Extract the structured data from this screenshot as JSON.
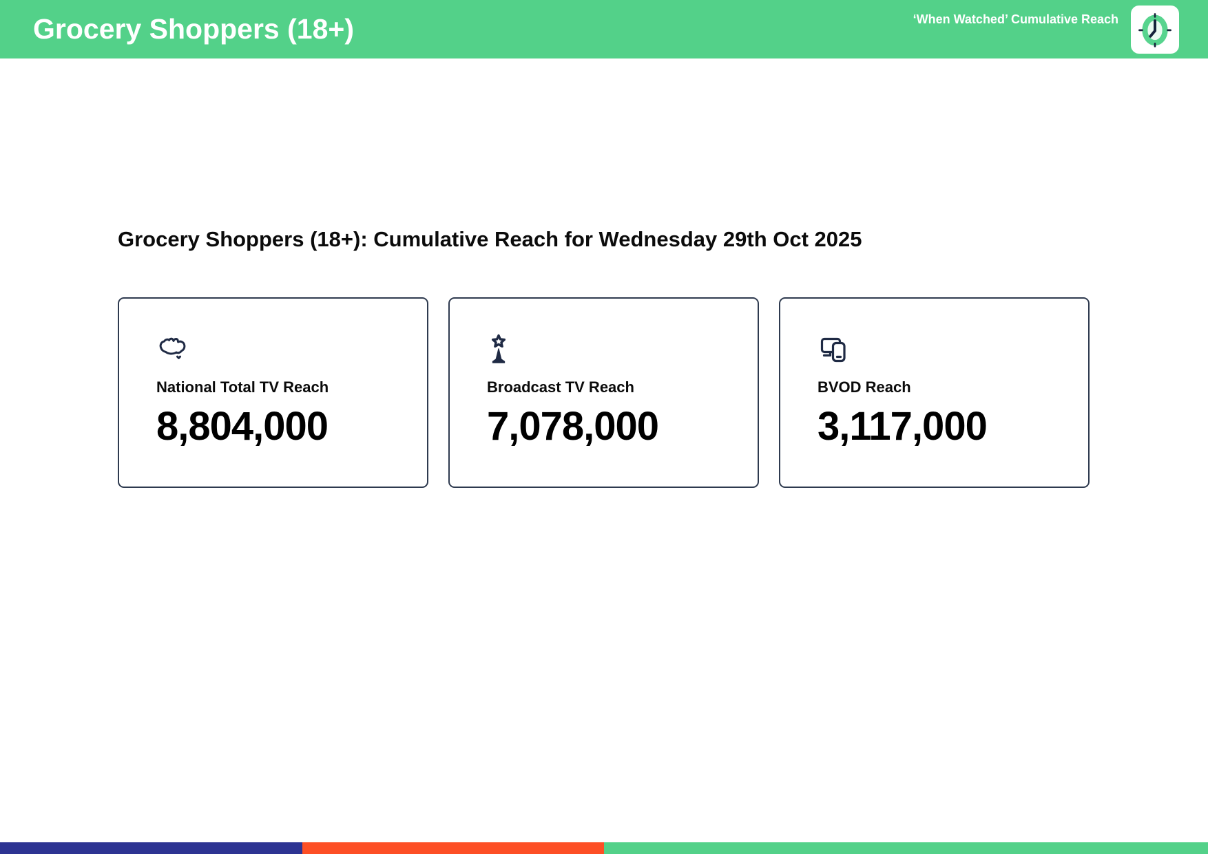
{
  "header": {
    "title": "Grocery Shoppers (18+)",
    "tagline": "‘When Watched’ Cumulative Reach"
  },
  "main": {
    "heading": "Grocery Shoppers (18+): Cumulative Reach for Wednesday 29th Oct 2025",
    "cards": [
      {
        "icon": "australia-map-icon",
        "label": "National Total TV Reach",
        "value": "8,804,000"
      },
      {
        "icon": "broadcast-tower-icon",
        "label": "Broadcast TV Reach",
        "value": "7,078,000"
      },
      {
        "icon": "devices-icon",
        "label": "BVOD Reach",
        "value": "3,117,000"
      }
    ]
  },
  "footer": {
    "segments": [
      {
        "name": "indigo",
        "color": "#2d3392",
        "width_pct": 25
      },
      {
        "name": "orange",
        "color": "#fd4f25",
        "width_pct": 25
      },
      {
        "name": "green",
        "color": "#53d189",
        "width_pct": 50
      }
    ]
  },
  "colors": {
    "brand_green": "#53d189",
    "icon_navy": "#1f2a44",
    "card_border": "#2e3a4f",
    "text_dark": "#0b0b0b"
  }
}
